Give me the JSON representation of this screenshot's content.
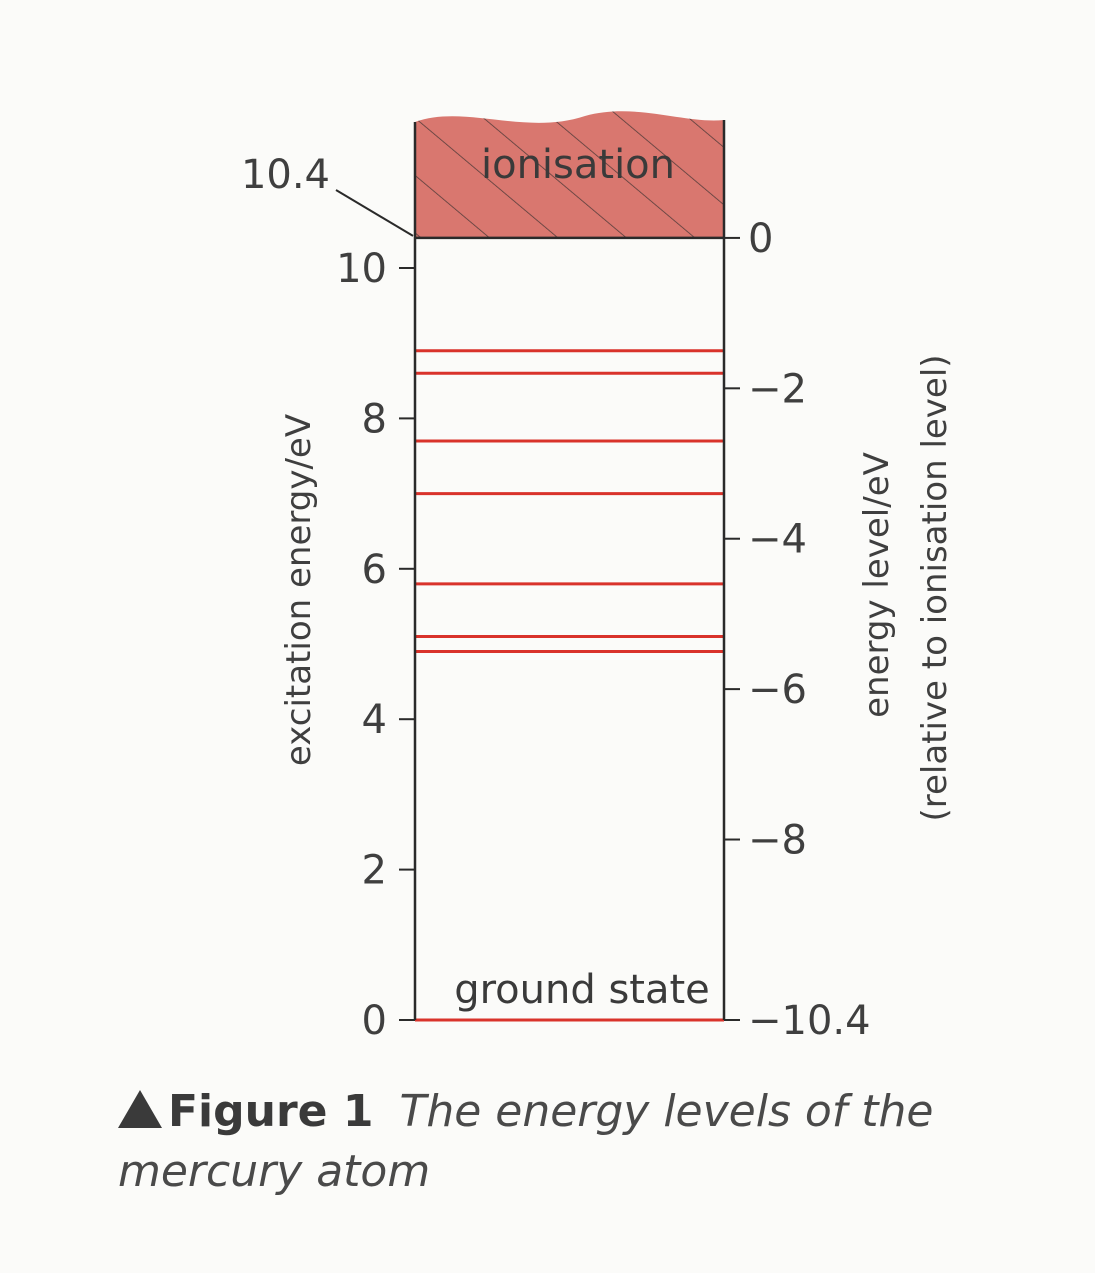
{
  "diagram": {
    "ionisation_label": "ionisation",
    "ionisation_energy_label": "10.4",
    "ground_state_label": "ground state",
    "left_axis": {
      "title": "excitation energy/eV",
      "range": [
        0,
        10.4
      ],
      "ticks": [
        "0",
        "2",
        "4",
        "6",
        "8",
        "10"
      ]
    },
    "right_axis": {
      "title_line1": "energy level/eV",
      "title_line2": "(relative to ionisation level)",
      "range": [
        -10.4,
        0
      ],
      "ticks": [
        {
          "value": 0,
          "label": "0"
        },
        {
          "value": -2,
          "label": "−2"
        },
        {
          "value": -4,
          "label": "−4"
        },
        {
          "value": -6,
          "label": "−6"
        },
        {
          "value": -8,
          "label": "−8"
        },
        {
          "value": -10.4,
          "label": "−10.4"
        }
      ]
    },
    "energy_levels_ev": [
      0,
      4.9,
      5.1,
      5.8,
      7.0,
      7.7,
      8.6,
      8.9
    ],
    "colors": {
      "level_line": "#d9332b",
      "ionisation_fill": "#d9776f",
      "axis": "#2a2a2a"
    }
  },
  "caption": {
    "figure_number": "Figure 1",
    "text": "The energy levels of the mercury atom"
  }
}
